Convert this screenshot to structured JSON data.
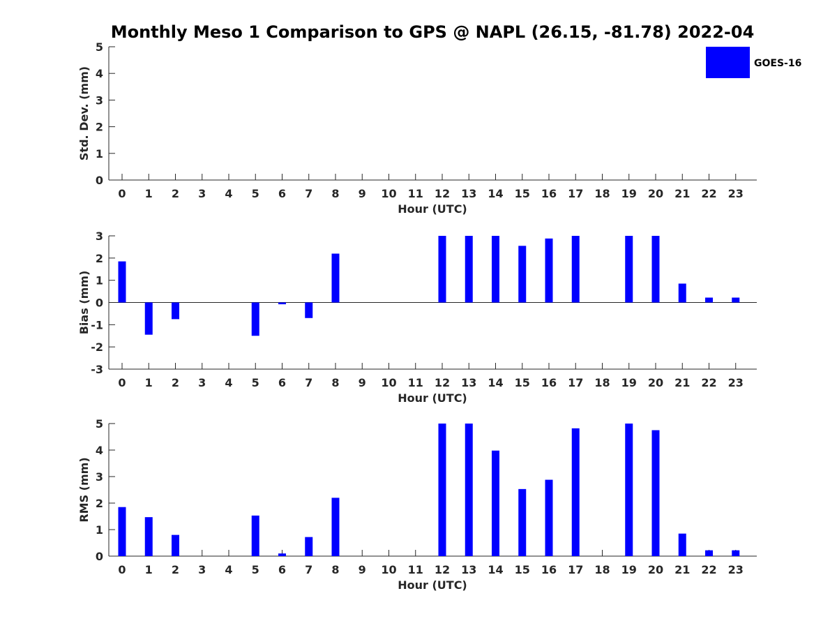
{
  "figure": {
    "title": "Monthly Meso 1 Comparison to GPS @ NAPL (26.15, -81.78) 2022-04",
    "legend": {
      "label": "GOES-16",
      "color": "#0000ff",
      "placement": "top-right"
    }
  },
  "chart_data": [
    {
      "type": "bar",
      "name": "std-dev",
      "xlabel": "Hour (UTC)",
      "ylabel": "Std. Dev. (mm)",
      "categories": [
        "0",
        "1",
        "2",
        "3",
        "4",
        "5",
        "6",
        "7",
        "8",
        "9",
        "10",
        "11",
        "12",
        "13",
        "14",
        "15",
        "16",
        "17",
        "18",
        "19",
        "20",
        "21",
        "22",
        "23"
      ],
      "ylim": [
        0,
        5
      ],
      "yticks": [
        0,
        1,
        2,
        3,
        4,
        5
      ],
      "series": [
        {
          "name": "GOES-16",
          "color": "#0000ff",
          "values": [
            null,
            null,
            null,
            null,
            null,
            null,
            null,
            null,
            null,
            null,
            null,
            null,
            null,
            null,
            null,
            null,
            null,
            null,
            null,
            null,
            null,
            null,
            null,
            null
          ]
        }
      ]
    },
    {
      "type": "bar",
      "name": "bias",
      "xlabel": "Hour (UTC)",
      "ylabel": "Bias (mm)",
      "categories": [
        "0",
        "1",
        "2",
        "3",
        "4",
        "5",
        "6",
        "7",
        "8",
        "9",
        "10",
        "11",
        "12",
        "13",
        "14",
        "15",
        "16",
        "17",
        "18",
        "19",
        "20",
        "21",
        "22",
        "23"
      ],
      "ylim": [
        -3,
        3
      ],
      "yticks": [
        -3,
        -2,
        -1,
        0,
        1,
        2,
        3
      ],
      "zero_line": true,
      "series": [
        {
          "name": "GOES-16",
          "color": "#0000ff",
          "values": [
            1.85,
            -1.45,
            -0.75,
            null,
            null,
            -1.5,
            -0.08,
            -0.7,
            2.2,
            null,
            null,
            null,
            3.0,
            3.0,
            3.0,
            2.55,
            2.88,
            3.0,
            null,
            3.0,
            3.0,
            0.85,
            0.22,
            0.22
          ]
        }
      ]
    },
    {
      "type": "bar",
      "name": "rms",
      "xlabel": "Hour (UTC)",
      "ylabel": "RMS (mm)",
      "categories": [
        "0",
        "1",
        "2",
        "3",
        "4",
        "5",
        "6",
        "7",
        "8",
        "9",
        "10",
        "11",
        "12",
        "13",
        "14",
        "15",
        "16",
        "17",
        "18",
        "19",
        "20",
        "21",
        "22",
        "23"
      ],
      "ylim": [
        0,
        5
      ],
      "yticks": [
        0,
        1,
        2,
        3,
        4,
        5
      ],
      "series": [
        {
          "name": "GOES-16",
          "color": "#0000ff",
          "values": [
            1.85,
            1.47,
            0.8,
            null,
            null,
            1.53,
            0.1,
            0.72,
            2.2,
            null,
            null,
            null,
            5.0,
            5.0,
            3.98,
            2.53,
            2.88,
            4.82,
            null,
            5.0,
            4.75,
            0.85,
            0.22,
            0.22
          ]
        }
      ]
    }
  ]
}
